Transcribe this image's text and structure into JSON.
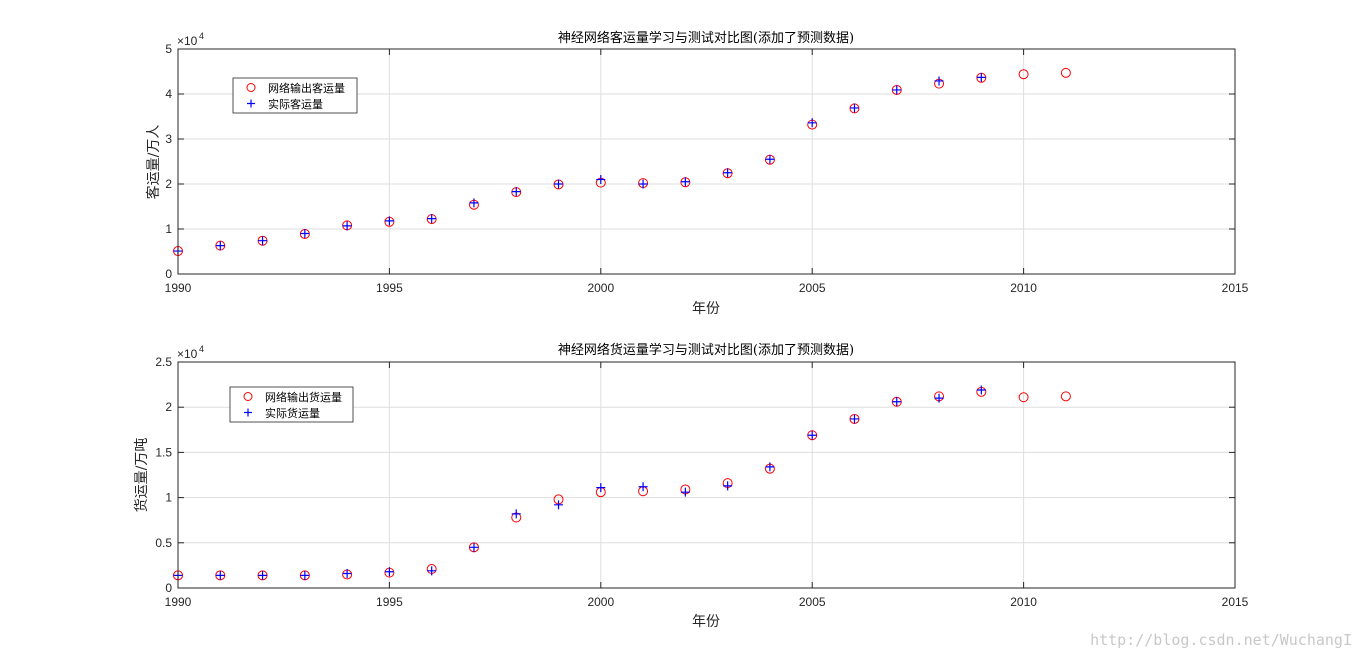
{
  "watermark": "http://blog.csdn.net/WuchangI",
  "chart_data": [
    {
      "type": "scatter",
      "title": "神经网络客运量学习与测试对比图(添加了预测数据)",
      "xlabel": "年份",
      "ylabel": "客运量/万人",
      "xlim": [
        1990,
        2015
      ],
      "ylim": [
        0,
        50000
      ],
      "xticks": [
        "1990",
        "1995",
        "2000",
        "2005",
        "2010",
        "2015"
      ],
      "yticks": [
        "0",
        "1",
        "2",
        "3",
        "4",
        "5"
      ],
      "exponent_base": "×10",
      "exponent_power": "4",
      "grid": true,
      "legend_position": "top-left",
      "series": [
        {
          "name": "网络输出客运量",
          "marker": "circle",
          "color": "#ff0000",
          "x": [
            1990,
            1991,
            1992,
            1993,
            1994,
            1995,
            1996,
            1997,
            1998,
            1999,
            2000,
            2001,
            2002,
            2003,
            2004,
            2005,
            2006,
            2007,
            2008,
            2009,
            2010,
            2011
          ],
          "values": [
            5100,
            6300,
            7400,
            8900,
            10800,
            11600,
            12200,
            15400,
            18200,
            19900,
            20300,
            20200,
            20400,
            22400,
            25400,
            33200,
            36800,
            40900,
            42300,
            43600,
            44400,
            44700
          ]
        },
        {
          "name": "实际客运量",
          "marker": "plus",
          "color": "#0000ff",
          "x": [
            1990,
            1991,
            1992,
            1993,
            1994,
            1995,
            1996,
            1997,
            1998,
            1999,
            2000,
            2001,
            2002,
            2003,
            2004,
            2005,
            2006,
            2007,
            2008,
            2009
          ],
          "values": [
            5100,
            6300,
            7400,
            9000,
            10700,
            11800,
            12300,
            15800,
            18300,
            20000,
            21000,
            20000,
            20500,
            22500,
            25500,
            33600,
            36900,
            40900,
            42900,
            43700
          ]
        }
      ]
    },
    {
      "type": "scatter",
      "title": "神经网络货运量学习与测试对比图(添加了预测数据)",
      "xlabel": "年份",
      "ylabel": "货运量/万吨",
      "xlim": [
        1990,
        2015
      ],
      "ylim": [
        0,
        25000
      ],
      "xticks": [
        "1990",
        "1995",
        "2000",
        "2005",
        "2010",
        "2015"
      ],
      "yticks": [
        "0",
        "0.5",
        "1",
        "1.5",
        "2",
        "2.5"
      ],
      "exponent_base": "×10",
      "exponent_power": "4",
      "grid": true,
      "legend_position": "top-left",
      "series": [
        {
          "name": "网络输出货运量",
          "marker": "circle",
          "color": "#ff0000",
          "x": [
            1990,
            1991,
            1992,
            1993,
            1994,
            1995,
            1996,
            1997,
            1998,
            1999,
            2000,
            2001,
            2002,
            2003,
            2004,
            2005,
            2006,
            2007,
            2008,
            2009,
            2010,
            2011
          ],
          "values": [
            1400,
            1400,
            1400,
            1400,
            1500,
            1700,
            2100,
            4500,
            7800,
            9800,
            10600,
            10700,
            10900,
            11600,
            13200,
            16900,
            18700,
            20600,
            21200,
            21700,
            21100,
            21200
          ]
        },
        {
          "name": "实际货运量",
          "marker": "plus",
          "color": "#0000ff",
          "x": [
            1990,
            1991,
            1992,
            1993,
            1994,
            1995,
            1996,
            1997,
            1998,
            1999,
            2000,
            2001,
            2002,
            2003,
            2004,
            2005,
            2006,
            2007,
            2008,
            2009
          ],
          "values": [
            1400,
            1400,
            1400,
            1400,
            1600,
            1800,
            1900,
            4500,
            8200,
            9200,
            11100,
            11200,
            10600,
            11300,
            13400,
            16900,
            18700,
            20600,
            21000,
            21900
          ]
        }
      ]
    }
  ]
}
